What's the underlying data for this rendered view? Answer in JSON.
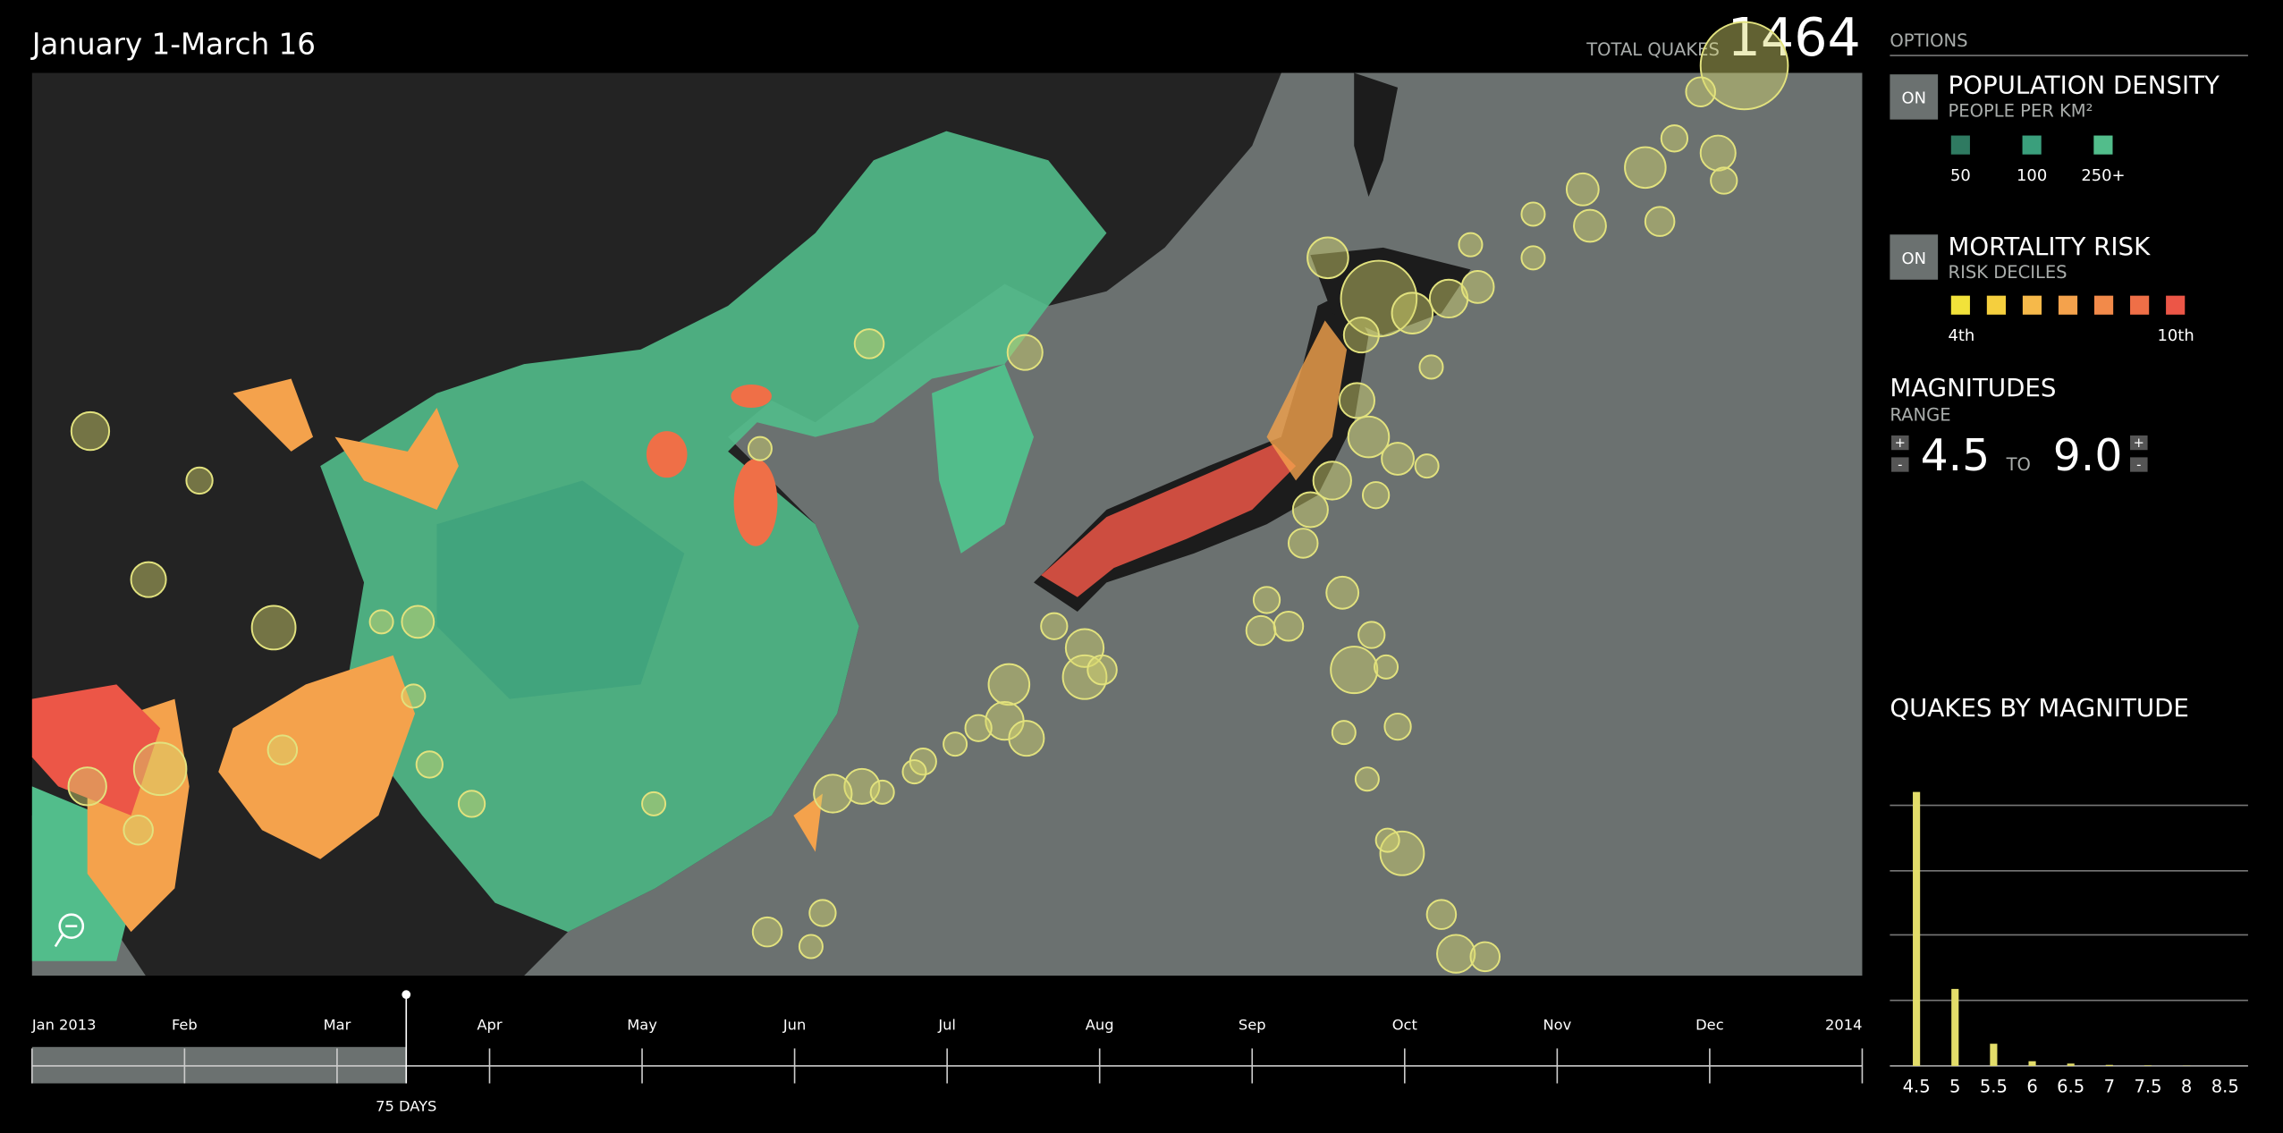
{
  "header": {
    "title": "January 1-March 16",
    "total_label": "TOTAL QUAKES",
    "total_value": "1464"
  },
  "options": {
    "title": "OPTIONS",
    "population": {
      "toggle": "ON",
      "title": "POPULATION DENSITY",
      "subtitle": "PEOPLE PER KM²",
      "legend": [
        "50",
        "100",
        "250+"
      ],
      "colors": [
        "#2f7a61",
        "#3a9f7c",
        "#52bd8b"
      ]
    },
    "mortality": {
      "toggle": "ON",
      "title": "MORTALITY RISK",
      "subtitle": "RISK DECILES",
      "legend_start": "4th",
      "legend_end": "10th",
      "colors": [
        "#f2e23a",
        "#f5cf3e",
        "#f6b94a",
        "#f4a24c",
        "#f28a4a",
        "#ef6f47",
        "#ec5647"
      ]
    },
    "magnitudes": {
      "title": "MAGNITUDES",
      "subtitle": "RANGE",
      "min": "4.5",
      "to": "TO",
      "max": "9.0",
      "plus": "+",
      "minus": "-"
    }
  },
  "timeline": {
    "labels": [
      "Jan 2013",
      "Feb",
      "Mar",
      "Apr",
      "May",
      "Jun",
      "Jul",
      "Aug",
      "Sep",
      "Oct",
      "Nov",
      "Dec",
      "2014"
    ],
    "selection": "75 DAYS"
  },
  "chart_data": {
    "type": "bar",
    "title": "QUAKES BY MAGNITUDE",
    "categories": [
      "4.5",
      "5",
      "5.5",
      "6",
      "6.5",
      "7",
      "7.5",
      "8",
      "8.5"
    ],
    "values": [
      1050,
      295,
      85,
      18,
      9,
      4,
      2,
      1,
      0
    ],
    "color": "#e3dd6a",
    "ylim": [
      0,
      1250
    ]
  }
}
